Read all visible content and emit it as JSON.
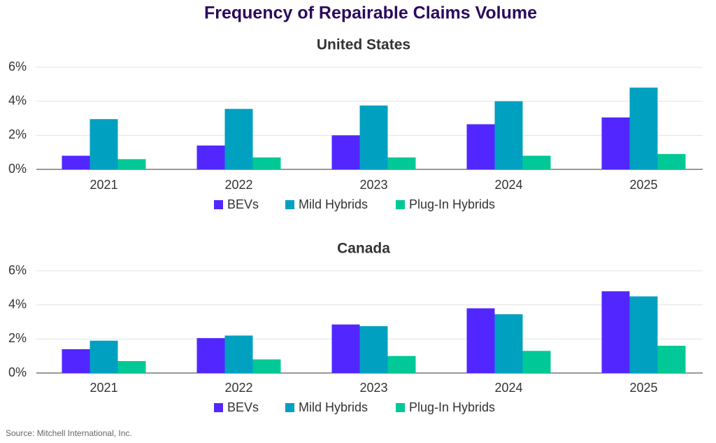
{
  "title": "Frequency of Repairable Claims Volume",
  "source": "Source: Mitchell International, Inc.",
  "chart_data": [
    {
      "type": "bar",
      "title": "United States",
      "categories": [
        "2021",
        "2022",
        "2023",
        "2024",
        "2025"
      ],
      "series": [
        {
          "name": "BEVs",
          "color": "#5227ff",
          "values": [
            0.8,
            1.4,
            2.0,
            2.65,
            3.05
          ]
        },
        {
          "name": "Mild Hybrids",
          "color": "#00a0c0",
          "values": [
            2.95,
            3.55,
            3.75,
            4.0,
            4.8
          ]
        },
        {
          "name": "Plug-In Hybrids",
          "color": "#00c896",
          "values": [
            0.6,
            0.7,
            0.7,
            0.8,
            0.9
          ]
        }
      ],
      "ylim": [
        0,
        6
      ],
      "yticks": [
        {
          "value": 0,
          "label": "0%"
        },
        {
          "value": 2,
          "label": "2%"
        },
        {
          "value": 4,
          "label": "4%"
        },
        {
          "value": 6,
          "label": "6%"
        }
      ],
      "grid": true,
      "legend": "bottom"
    },
    {
      "type": "bar",
      "title": "Canada",
      "categories": [
        "2021",
        "2022",
        "2023",
        "2024",
        "2025"
      ],
      "series": [
        {
          "name": "BEVs",
          "color": "#5227ff",
          "values": [
            1.4,
            2.05,
            2.85,
            3.8,
            4.8
          ]
        },
        {
          "name": "Mild Hybrids",
          "color": "#00a0c0",
          "values": [
            1.9,
            2.2,
            2.75,
            3.45,
            4.5
          ]
        },
        {
          "name": "Plug-In Hybrids",
          "color": "#00c896",
          "values": [
            0.7,
            0.8,
            1.0,
            1.3,
            1.6
          ]
        }
      ],
      "ylim": [
        0,
        6
      ],
      "yticks": [
        {
          "value": 0,
          "label": "0%"
        },
        {
          "value": 2,
          "label": "2%"
        },
        {
          "value": 4,
          "label": "4%"
        },
        {
          "value": 6,
          "label": "6%"
        }
      ],
      "grid": true,
      "legend": "bottom"
    }
  ]
}
